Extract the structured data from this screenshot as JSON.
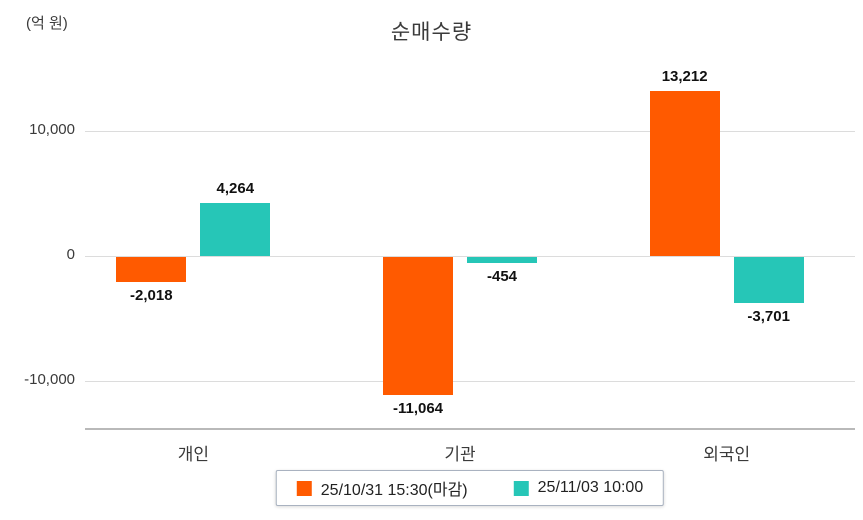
{
  "title": "순매수량",
  "unit_label": "(억 원)",
  "colors": {
    "series1": "#ff5a00",
    "series2": "#26c6b7",
    "gridline": "#dcdcdc",
    "axis": "#b9b9b9"
  },
  "legend": [
    {
      "label": "25/10/31 15:30(마감)",
      "color": "#ff5a00"
    },
    {
      "label": "25/11/03 10:00",
      "color": "#26c6b7"
    }
  ],
  "chart_data": {
    "type": "bar",
    "title": "순매수량",
    "xlabel": "",
    "ylabel": "(억 원)",
    "categories": [
      "개인",
      "기관",
      "외국인"
    ],
    "series": [
      {
        "name": "25/10/31 15:30(마감)",
        "color": "#ff5a00",
        "values": [
          -2018,
          -11064,
          13212
        ]
      },
      {
        "name": "25/11/03 10:00",
        "color": "#26c6b7",
        "values": [
          4264,
          -454,
          -3701
        ]
      }
    ],
    "value_labels": [
      [
        "-2,018",
        "-11,064",
        "13,212"
      ],
      [
        "4,264",
        "-454",
        "-3,701"
      ]
    ],
    "yticks": [
      10000,
      0,
      -10000
    ],
    "ytick_labels": [
      "10,000",
      "0",
      "-10,000"
    ],
    "ylim": [
      -13500,
      15500
    ],
    "grid": true,
    "legend_position": "bottom"
  }
}
